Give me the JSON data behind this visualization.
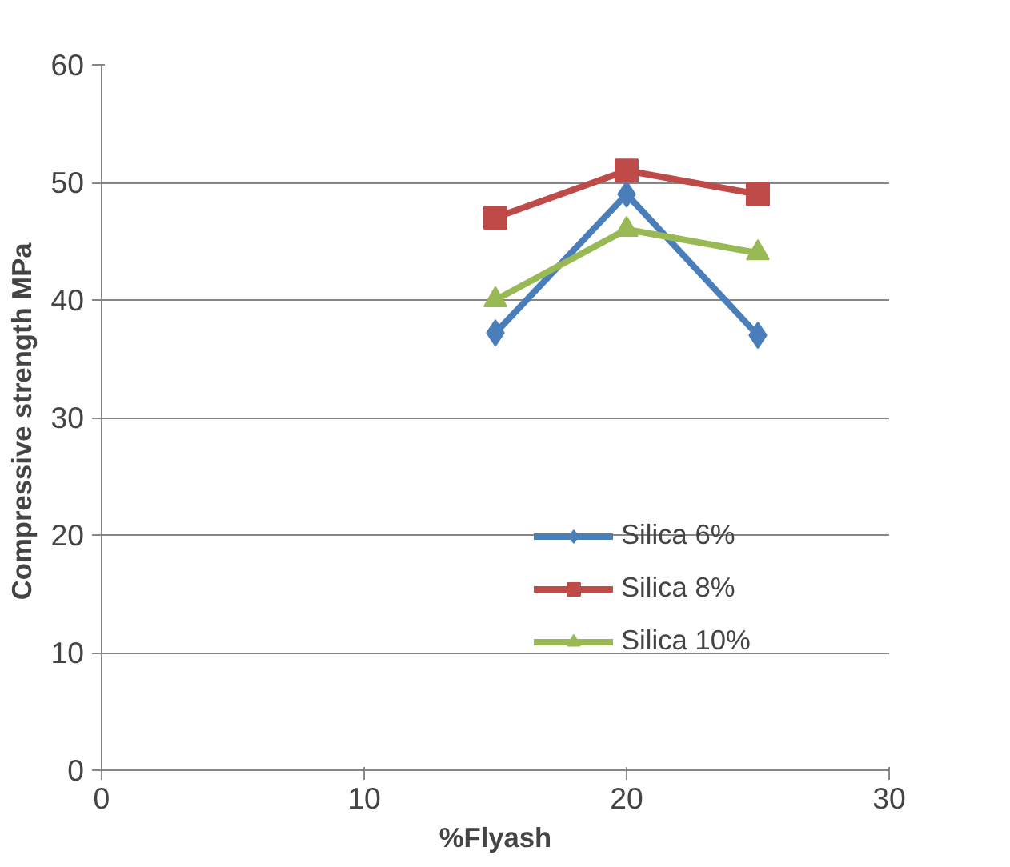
{
  "chart_data": {
    "type": "line",
    "xlabel": "%Flyash",
    "ylabel": "Compressive strength  MPa",
    "x": [
      15,
      20,
      25
    ],
    "xlim": [
      0,
      30
    ],
    "xticks": [
      0,
      10,
      20,
      30
    ],
    "ylim": [
      0,
      60
    ],
    "yticks": [
      0,
      10,
      20,
      30,
      40,
      50,
      60
    ],
    "grid": "y",
    "legend": "right",
    "line_style": "solid",
    "series": [
      {
        "name": "Silica 6%",
        "color": "#4a7ebb",
        "marker": "diamond",
        "values": [
          37.2,
          49,
          37
        ]
      },
      {
        "name": "Silica 8%",
        "color": "#be4b48",
        "marker": "square",
        "values": [
          47,
          51,
          49
        ]
      },
      {
        "name": "Silica 10%",
        "color": "#98b954",
        "marker": "triangle",
        "values": [
          40,
          46,
          44
        ]
      }
    ]
  }
}
